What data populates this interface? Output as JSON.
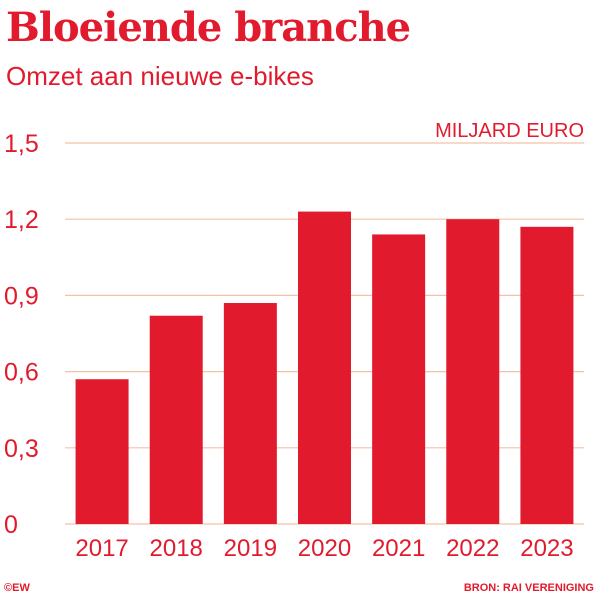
{
  "header": {
    "title": "Bloeiende branche",
    "subtitle": "Omzet aan nieuwe e-bikes"
  },
  "footer": {
    "credit": "©EW",
    "source": "BRON: RAI VERENIGING"
  },
  "colors": {
    "accent": "#e11b2d",
    "gridline": "#f2c2a8"
  },
  "chart_data": {
    "type": "bar",
    "title": "Bloeiende branche",
    "subtitle": "Omzet aan nieuwe e-bikes",
    "unit_label": "MILJARD EURO",
    "categories": [
      "2017",
      "2018",
      "2019",
      "2020",
      "2021",
      "2022",
      "2023"
    ],
    "values": [
      0.57,
      0.82,
      0.87,
      1.23,
      1.14,
      1.2,
      1.17
    ],
    "ylim": [
      0,
      1.5
    ],
    "yticks": [
      0,
      0.3,
      0.6,
      0.9,
      1.2,
      1.5
    ],
    "ytick_labels": [
      "0",
      "0,3",
      "0,6",
      "0,9",
      "1,2",
      "1,5"
    ],
    "grid": true,
    "legend": "none"
  }
}
